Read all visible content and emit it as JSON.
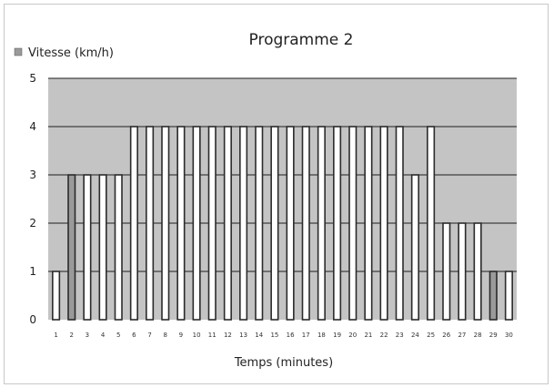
{
  "chart_data": {
    "type": "bar",
    "title": "Programme 2",
    "xlabel": "Temps (minutes)",
    "ylabel": "",
    "ylim": [
      0,
      5
    ],
    "y_ticks": [
      "0",
      "1",
      "2",
      "3",
      "4",
      "5"
    ],
    "grid": true,
    "legend": {
      "position": "top-left",
      "entries": [
        "Vitesse (km/h)"
      ]
    },
    "categories": [
      "1",
      "2",
      "3",
      "4",
      "5",
      "6",
      "7",
      "8",
      "9",
      "10",
      "11",
      "12",
      "13",
      "14",
      "15",
      "16",
      "17",
      "18",
      "19",
      "20",
      "21",
      "22",
      "23",
      "24",
      "25",
      "26",
      "27",
      "28",
      "29",
      "30"
    ],
    "series": [
      {
        "name": "Vitesse (km/h)",
        "values": [
          1,
          3,
          3,
          3,
          3,
          4,
          4,
          4,
          4,
          4,
          4,
          4,
          4,
          4,
          4,
          4,
          4,
          4,
          4,
          4,
          4,
          4,
          4,
          3,
          4,
          2,
          2,
          2,
          1,
          1
        ]
      }
    ]
  },
  "colors": {
    "plot_background": "#c4c4c4",
    "bar_edge": "#2b2b2b",
    "bar_fill": "#ffffff",
    "bar_fill_alt": "#9a9a9a",
    "grid": "#1e1e1e",
    "legend_swatch": "#9a9a9a"
  }
}
